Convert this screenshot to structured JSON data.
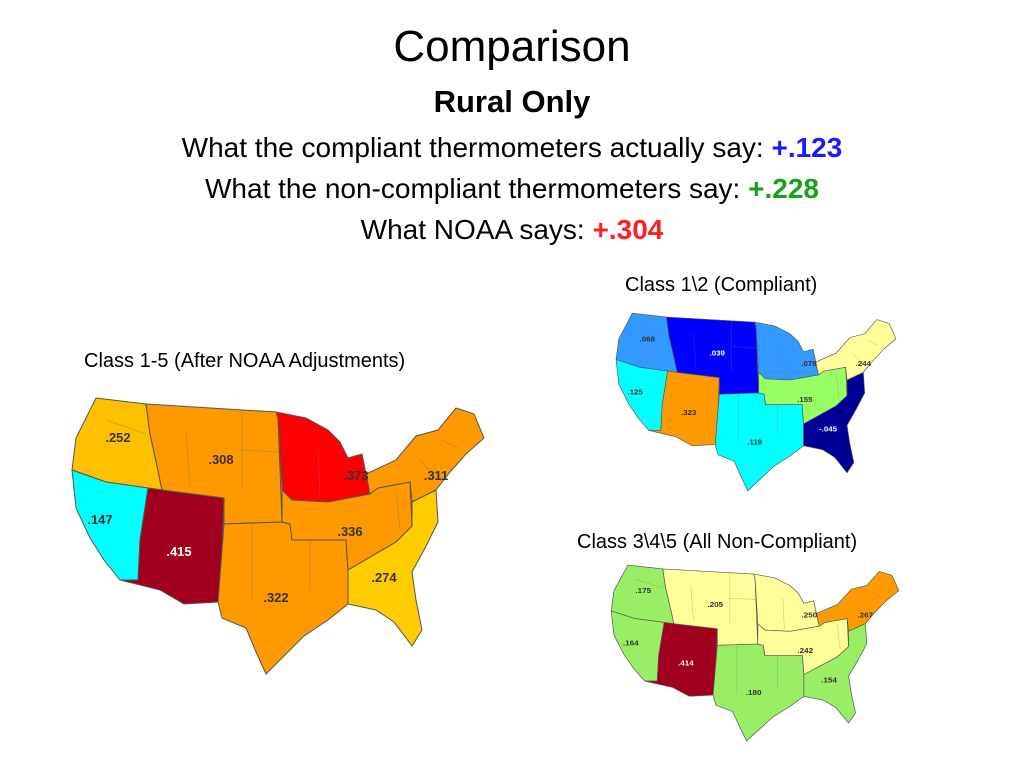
{
  "title": "Comparison",
  "subtitle": "Rural Only",
  "lines": [
    {
      "text": "What the compliant thermometers actually say:",
      "value": "+.123",
      "color": "#1a1aff"
    },
    {
      "text": "What the non-compliant thermometers say:",
      "value": "+.228",
      "color": "#19a019"
    },
    {
      "text": "What NOAA says:",
      "value": "+.304",
      "color": "#ff2020"
    }
  ],
  "maps": {
    "noaa": {
      "caption": "Class 1-5 (After NOAA Adjustments)",
      "regions": [
        {
          "name": "northwest",
          "value": ".252",
          "color": "#ffc000"
        },
        {
          "name": "west",
          "value": ".147",
          "color": "#00ffff"
        },
        {
          "name": "southwest",
          "value": ".415",
          "color": "#a0001e"
        },
        {
          "name": "west-north-central",
          "value": ".308",
          "color": "#ff9900"
        },
        {
          "name": "south",
          "value": ".322",
          "color": "#ff9900"
        },
        {
          "name": "east-north-central",
          "value": ".373",
          "color": "#ff0000"
        },
        {
          "name": "central",
          "value": ".336",
          "color": "#ff9900"
        },
        {
          "name": "northeast",
          "value": ".311",
          "color": "#ff9900"
        },
        {
          "name": "southeast",
          "value": ".274",
          "color": "#ffcc00"
        }
      ]
    },
    "compliant": {
      "caption": "Class 1\\2 (Compliant)",
      "regions": [
        {
          "name": "northwest",
          "value": ".068",
          "color": "#3399ff"
        },
        {
          "name": "west",
          "value": ".125",
          "color": "#00ffff"
        },
        {
          "name": "southwest",
          "value": ".323",
          "color": "#ff9900"
        },
        {
          "name": "west-north-central",
          "value": ".039",
          "color": "#0000ff"
        },
        {
          "name": "south",
          "value": ".119",
          "color": "#00ffff"
        },
        {
          "name": "east-north-central",
          "value": ".078",
          "color": "#3399ff"
        },
        {
          "name": "central",
          "value": ".155",
          "color": "#99ff66"
        },
        {
          "name": "northeast",
          "value": ".244",
          "color": "#ffff99"
        },
        {
          "name": "southeast",
          "value": "-.045",
          "color": "#000099"
        }
      ]
    },
    "noncompliant": {
      "caption": "Class 3\\4\\5 (All Non-Compliant)",
      "regions": [
        {
          "name": "northwest",
          "value": ".175",
          "color": "#99ee66"
        },
        {
          "name": "west",
          "value": ".164",
          "color": "#99ee66"
        },
        {
          "name": "southwest",
          "value": ".414",
          "color": "#a0001e"
        },
        {
          "name": "west-north-central",
          "value": ".205",
          "color": "#ffff99"
        },
        {
          "name": "south",
          "value": ".180",
          "color": "#99ee66"
        },
        {
          "name": "east-north-central",
          "value": ".250",
          "color": "#ffff99"
        },
        {
          "name": "central",
          "value": ".242",
          "color": "#ffff99"
        },
        {
          "name": "northeast",
          "value": ".267",
          "color": "#ff9900"
        },
        {
          "name": "southeast",
          "value": ".154",
          "color": "#99ee66"
        }
      ]
    }
  }
}
